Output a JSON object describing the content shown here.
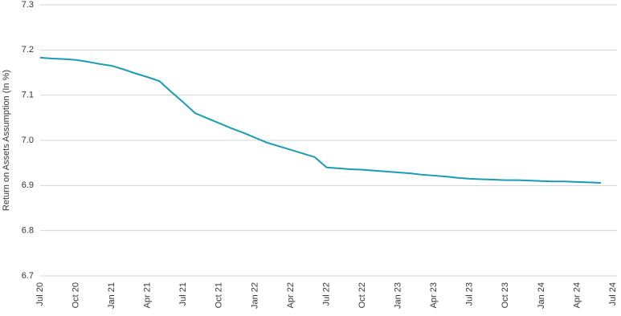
{
  "chart_data": {
    "type": "line",
    "y_label": "Return on Assets Assumption (In %)",
    "categories": [
      "Jul 20",
      null,
      null,
      "Oct 20",
      null,
      null,
      "Jan 21",
      null,
      null,
      "Apr 21",
      null,
      null,
      "Jul 21",
      null,
      null,
      "Oct 21",
      null,
      null,
      "Jan 22",
      null,
      null,
      "Apr 22",
      null,
      null,
      "Jul 22",
      null,
      null,
      "Oct 22",
      null,
      null,
      "Jan 23",
      null,
      null,
      "Apr 23",
      null,
      null,
      "Jul 23",
      null,
      null,
      "Oct 23",
      null,
      null,
      "Jan 24",
      null,
      null,
      "Apr 24",
      null,
      null,
      "Jul 24"
    ],
    "values": [
      7.183,
      7.181,
      7.18,
      7.178,
      7.174,
      7.169,
      7.165,
      7.157,
      7.148,
      7.14,
      7.131,
      7.107,
      7.084,
      7.06,
      7.049,
      7.038,
      7.027,
      7.017,
      7.006,
      6.995,
      6.987,
      6.979,
      6.971,
      6.963,
      6.94,
      6.938,
      6.936,
      6.935,
      6.933,
      6.931,
      6.929,
      6.927,
      6.924,
      6.922,
      6.92,
      6.917,
      6.915,
      6.914,
      6.913,
      6.912,
      6.912,
      6.911,
      6.91,
      6.909,
      6.909,
      6.908,
      6.907,
      6.906,
      null
    ],
    "color": "#1b9bb3",
    "ylim": [
      6.7,
      7.3
    ],
    "yticks": [
      6.7,
      6.8,
      6.9,
      {
        "value": 7,
        "label": "7.0"
      },
      7.1,
      7.2,
      7.3
    ],
    "grid": true
  }
}
